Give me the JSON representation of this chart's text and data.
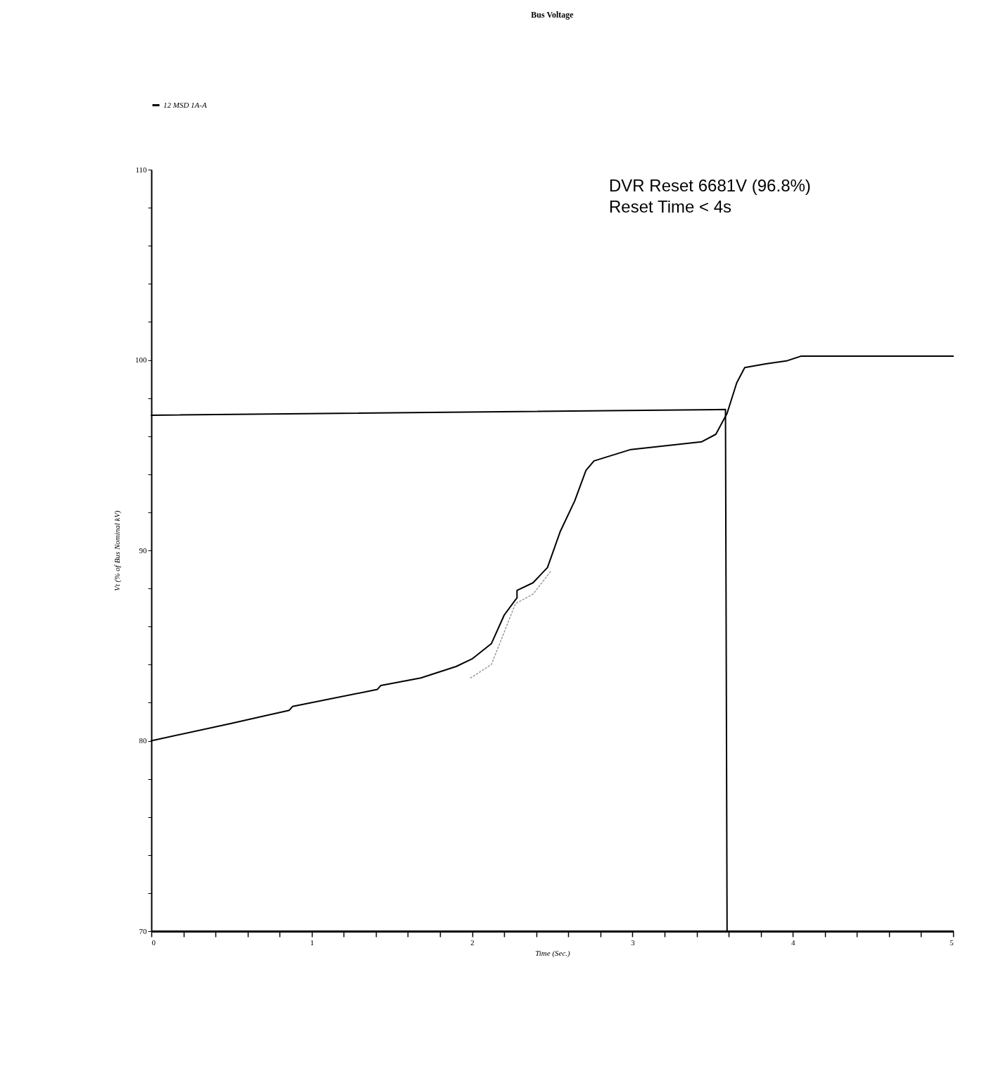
{
  "chart_data": {
    "type": "line",
    "title": "Bus Voltage",
    "xlabel": "Time (Sec.)",
    "ylabel": "Vt (% of Bus Nominal kV)",
    "xlim": [
      0,
      5
    ],
    "ylim": [
      70,
      110
    ],
    "xticks": [
      0,
      {
        "value": 0.2,
        "label": null
      },
      {
        "value": 0.4,
        "label": null
      },
      {
        "value": 0.6,
        "label": null
      },
      {
        "value": 0.8,
        "label": null
      },
      1,
      {
        "value": 1.2,
        "label": null
      },
      {
        "value": 1.4,
        "label": null
      },
      {
        "value": 1.6,
        "label": null
      },
      {
        "value": 1.8,
        "label": null
      },
      2,
      {
        "value": 2.2,
        "label": null
      },
      {
        "value": 2.4,
        "label": null
      },
      {
        "value": 2.6,
        "label": null
      },
      {
        "value": 2.8,
        "label": null
      },
      3,
      {
        "value": 3.2,
        "label": null
      },
      {
        "value": 3.4,
        "label": null
      },
      {
        "value": 3.6,
        "label": null
      },
      {
        "value": 3.8,
        "label": null
      },
      4,
      {
        "value": 4.2,
        "label": null
      },
      {
        "value": 4.4,
        "label": null
      },
      {
        "value": 4.6,
        "label": null
      },
      {
        "value": 4.8,
        "label": null
      },
      5
    ],
    "yticks": [
      70,
      {
        "value": 72,
        "label": null
      },
      {
        "value": 74,
        "label": null
      },
      {
        "value": 76,
        "label": null
      },
      {
        "value": 78,
        "label": null
      },
      80,
      {
        "value": 82,
        "label": null
      },
      {
        "value": 84,
        "label": null
      },
      {
        "value": 86,
        "label": null
      },
      {
        "value": 88,
        "label": null
      },
      90,
      {
        "value": 92,
        "label": null
      },
      {
        "value": 94,
        "label": null
      },
      {
        "value": 96,
        "label": null
      },
      {
        "value": 98,
        "label": null
      },
      100,
      {
        "value": 102,
        "label": null
      },
      {
        "value": 104,
        "label": null
      },
      {
        "value": 106,
        "label": null
      },
      {
        "value": 108,
        "label": null
      },
      110
    ],
    "grid": false,
    "legend": "top left",
    "marker": "none",
    "series": [
      {
        "name": "12 MSD 1A-A",
        "color": "#000000",
        "line_style": "solid",
        "x": [
          0,
          0.49,
          0.86,
          0.88,
          1.41,
          1.43,
          1.68,
          1.9,
          2.0,
          2.12,
          2.2,
          2.27,
          2.28,
          2.28,
          2.38,
          2.47,
          2.55,
          2.64,
          2.71,
          2.76,
          2.99,
          3.43,
          3.52,
          3.59,
          3.65,
          3.7,
          3.83,
          3.96,
          4.05,
          5
        ],
        "values": [
          80.0,
          80.9,
          81.6,
          81.8,
          82.7,
          82.9,
          83.3,
          83.9,
          84.3,
          85.1,
          86.6,
          87.4,
          87.5,
          87.9,
          88.3,
          89.1,
          91.0,
          92.6,
          94.2,
          94.7,
          95.3,
          95.7,
          96.1,
          97.2,
          98.8,
          99.6,
          99.8,
          99.95,
          100.2,
          100.2
        ]
      },
      {
        "color": "#999999",
        "line_style": "dotted",
        "x": [
          1.99,
          2.12,
          2.2,
          2.27,
          2.38,
          2.49
        ],
        "values": [
          83.3,
          84.0,
          85.7,
          87.2,
          87.7,
          88.9
        ]
      },
      {
        "color": "#000000",
        "line_style": "solid",
        "x": [
          0,
          3.58,
          3.59,
          5
        ],
        "values": [
          97.1,
          97.4,
          70,
          70
        ]
      }
    ],
    "annotations": [
      "DVR Reset 6681V (96.8%)",
      "Reset Time < 4s"
    ]
  }
}
